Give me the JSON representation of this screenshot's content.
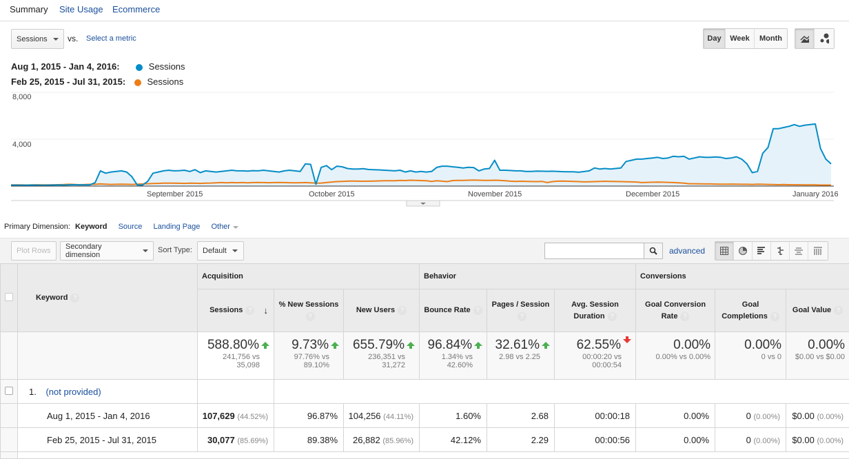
{
  "tabs": [
    "Summary",
    "Site Usage",
    "Ecommerce"
  ],
  "metric_select": "Sessions",
  "vs_label": "vs.",
  "select_metric": "Select a metric",
  "granularity": [
    "Day",
    "Week",
    "Month"
  ],
  "granularity_selected": "Day",
  "chart_type_buttons": [
    "line-chart-icon",
    "motion-chart-icon"
  ],
  "legend": [
    {
      "range": "Aug 1, 2015 - Jan 4, 2016:",
      "series": "Sessions",
      "color": "#058dc7"
    },
    {
      "range": "Feb 25, 2015 - Jul 31, 2015:",
      "series": "Sessions",
      "color": "#ed7e17"
    }
  ],
  "chart_data": {
    "type": "line",
    "x_start": "2015-08-01",
    "x_end": "2016-01-04",
    "ylim": [
      0,
      8000
    ],
    "yticks": [
      "8,000",
      "4,000"
    ],
    "xticks": [
      "September 2015",
      "October 2015",
      "November 2015",
      "December 2015",
      "January 2016"
    ],
    "grid": true,
    "legend_placement": "top-left",
    "series": [
      {
        "name": "Sessions",
        "color": "#058dc7",
        "fill": "#e5f2f9",
        "values": [
          80,
          80,
          70,
          80,
          90,
          80,
          70,
          80,
          90,
          100,
          90,
          100,
          120,
          100,
          110,
          100,
          300,
          1300,
          1100,
          1200,
          1250,
          1300,
          1200,
          800,
          100,
          80,
          400,
          1100,
          1200,
          1300,
          1350,
          1300,
          1320,
          1350,
          1250,
          1400,
          1150,
          1300,
          1250,
          1200,
          1250,
          1300,
          1350,
          1300,
          1300,
          1280,
          1320,
          1300,
          1350,
          1300,
          1250,
          1200,
          1300,
          1350,
          1300,
          1250,
          1900,
          1850,
          150,
          1600,
          1750,
          1400,
          1700,
          1650,
          1500,
          1450,
          1450,
          1480,
          1420,
          1400,
          1380,
          1350,
          1330,
          1300,
          1350,
          1200,
          1300,
          1200,
          1250,
          1200,
          1250,
          1600,
          1700,
          1700,
          1650,
          1600,
          1550,
          1600,
          1580,
          1300,
          1450,
          1500,
          2200,
          1350,
          1350,
          1330,
          1300,
          1300,
          1250,
          1250,
          1280,
          1270,
          1260,
          1270,
          1250,
          1230,
          1220,
          1220,
          1180,
          1240,
          1300,
          1550,
          1450,
          1500,
          1450,
          1500,
          1550,
          2100,
          2200,
          2300,
          2300,
          2350,
          2400,
          2450,
          2350,
          2400,
          2550,
          2500,
          2550,
          2300,
          2400,
          2500,
          2450,
          2450,
          2480,
          2450,
          2350,
          2400,
          2500,
          2300,
          1900,
          1150,
          1250,
          2800,
          3300,
          4900,
          4900,
          5000,
          5100,
          5250,
          5100,
          5200,
          5250,
          5300,
          3200,
          2300,
          1900
        ]
      },
      {
        "name": "Sessions",
        "color": "#ed7e17",
        "values": [
          100,
          100,
          100,
          90,
          100,
          110,
          100,
          100,
          110,
          120,
          130,
          150,
          140,
          120,
          130,
          150,
          150,
          180,
          160,
          140,
          150,
          160,
          150,
          140,
          160,
          180,
          200,
          220,
          230,
          250,
          250,
          250,
          240,
          230,
          250,
          240,
          230,
          250,
          260,
          280,
          300,
          280,
          300,
          290,
          300,
          280,
          300,
          310,
          300,
          290,
          300,
          310,
          300,
          290,
          280,
          290,
          300,
          280,
          250,
          260,
          300,
          350,
          380,
          400,
          420,
          430,
          420,
          410,
          420,
          430,
          440,
          450,
          460,
          450,
          480,
          470,
          500,
          480,
          470,
          450,
          400,
          450,
          420,
          380,
          470,
          480,
          490,
          500,
          510,
          500,
          480,
          490,
          500,
          480,
          450,
          420,
          400,
          410,
          400,
          390,
          380,
          400,
          300,
          380,
          420,
          430,
          410,
          400,
          380,
          360,
          370,
          380,
          400,
          410,
          400,
          390,
          380,
          370,
          360,
          350,
          300,
          320,
          330,
          340,
          330,
          320,
          300,
          280,
          250,
          200,
          200,
          190,
          180,
          180,
          170,
          160,
          160,
          170,
          160,
          150,
          150,
          140,
          160,
          150,
          140,
          130,
          120,
          130,
          120,
          110,
          110,
          100,
          100,
          100,
          90,
          90,
          80
        ]
      }
    ]
  },
  "primary_dimension": {
    "label": "Primary Dimension:",
    "selected": "Keyword",
    "options": [
      "Source",
      "Landing Page",
      "Other"
    ]
  },
  "toolbar": {
    "plot_rows": "Plot Rows",
    "secondary": "Secondary dimension",
    "sort_label": "Sort Type:",
    "sort_value": "Default",
    "search_value": "",
    "advanced": "advanced",
    "views": [
      "table-view-icon",
      "pie-view-icon",
      "performance-view-icon",
      "comparison-view-icon",
      "term-cloud-icon",
      "pivot-view-icon"
    ]
  },
  "table": {
    "groups": [
      "Acquisition",
      "Behavior",
      "Conversions"
    ],
    "keyword_header": "Keyword",
    "columns": [
      "Sessions",
      "% New Sessions",
      "New Users",
      "Bounce Rate",
      "Pages / Session",
      "Avg. Session Duration",
      "Goal Conversion Rate",
      "Goal Completions",
      "Goal Value"
    ],
    "summary": [
      {
        "change": "588.80%",
        "dir": "up",
        "detail": "241,756 vs 35,098"
      },
      {
        "change": "9.73%",
        "dir": "up",
        "detail": "97.76% vs 89.10%"
      },
      {
        "change": "655.79%",
        "dir": "up",
        "detail": "236,351 vs 31,272"
      },
      {
        "change": "96.84%",
        "dir": "up",
        "detail": "1.34% vs 42.60%"
      },
      {
        "change": "32.61%",
        "dir": "up",
        "detail": "2.98 vs 2.25"
      },
      {
        "change": "62.55%",
        "dir": "down",
        "detail": "00:00:20 vs 00:00:54"
      },
      {
        "change": "0.00%",
        "dir": "",
        "detail": "0.00% vs 0.00%"
      },
      {
        "change": "0.00%",
        "dir": "",
        "detail": "0 vs 0"
      },
      {
        "change": "0.00%",
        "dir": "",
        "detail": "$0.00 vs $0.00"
      }
    ],
    "rows": [
      {
        "index": "1.",
        "keyword": "(not provided)",
        "sub": [
          {
            "range": "Aug 1, 2015 - Jan 4, 2016",
            "sessions": "107,629",
            "sessions_pct": "(44.52%)",
            "new_sessions": "96.87%",
            "new_users": "104,256",
            "new_users_pct": "(44.11%)",
            "bounce": "1.60%",
            "pages": "2.68",
            "duration": "00:00:18",
            "conv": "0.00%",
            "completions": "0",
            "completions_pct": "(0.00%)",
            "value": "$0.00",
            "value_pct": "(0.00%)"
          },
          {
            "range": "Feb 25, 2015 - Jul 31, 2015",
            "sessions": "30,077",
            "sessions_pct": "(85.69%)",
            "new_sessions": "89.38%",
            "new_users": "26,882",
            "new_users_pct": "(85.96%)",
            "bounce": "42.12%",
            "pages": "2.29",
            "duration": "00:00:56",
            "conv": "0.00%",
            "completions": "0",
            "completions_pct": "(0.00%)",
            "value": "$0.00",
            "value_pct": "(0.00%)"
          }
        ]
      }
    ]
  }
}
